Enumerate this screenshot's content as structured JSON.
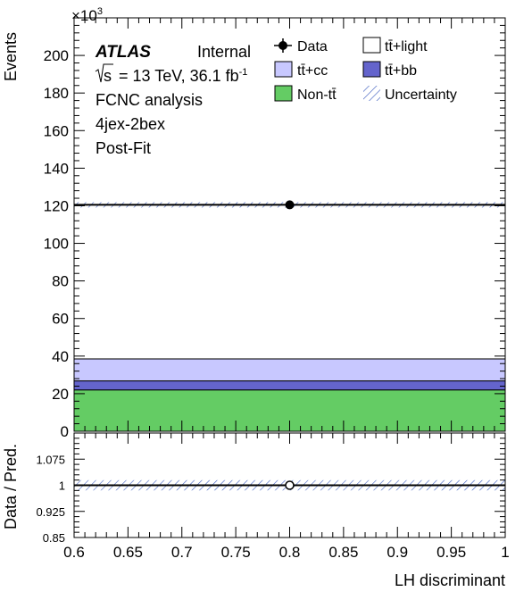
{
  "plot_info": {
    "atlas": "ATLAS",
    "status": "Internal",
    "sqrts_prefix": "s",
    "energy_lumi": "= 13 TeV, 36.1 fb",
    "lumi_exp": "-1",
    "analysis": "FCNC analysis",
    "region": "4jex-2bex",
    "fit": "Post-Fit"
  },
  "colors": {
    "ttlight": "#ffffff",
    "ttcc": "#c8c8ff",
    "ttbb": "#6464cc",
    "nontt": "#64cc64",
    "uncertainty": "#3f5fbf"
  },
  "chart_data": [
    {
      "type": "bar",
      "panel": "main",
      "stacked": true,
      "xlim": [
        0.6,
        1.0
      ],
      "ylim": [
        0,
        220000
      ],
      "y_multiplier": "×10",
      "y_multiplier_exp": "3",
      "ylabel": "Events",
      "yticks": [
        0,
        20,
        40,
        60,
        80,
        100,
        120,
        140,
        160,
        180,
        200
      ],
      "bin": [
        0.6,
        1.0
      ],
      "series": [
        {
          "name": "Non-tt̄",
          "value": 22000
        },
        {
          "name": "tt̄+bb",
          "value": 4800
        },
        {
          "name": "tt̄+cc",
          "value": 11700
        },
        {
          "name": "tt̄+light",
          "value": 82000
        }
      ],
      "data_point": {
        "name": "Data",
        "x": 0.8,
        "y": 120500
      },
      "legend": {
        "placement": "top-right",
        "entries": [
          "Data",
          "tt̄+light",
          "tt̄+cc",
          "tt̄+bb",
          "Non-tt̄",
          "Uncertainty"
        ]
      }
    },
    {
      "type": "scatter",
      "panel": "ratio",
      "xlim": [
        0.6,
        1.0
      ],
      "ylim": [
        0.85,
        1.15
      ],
      "ylabel": "Data / Pred.",
      "xlabel": "LH discriminant",
      "yticks": [
        "0.85",
        "0.925",
        "1",
        "1.075"
      ],
      "xticks": [
        "0.6",
        "0.65",
        "0.7",
        "0.75",
        "0.8",
        "0.85",
        "0.9",
        "0.95",
        "1"
      ],
      "x": [
        0.8
      ],
      "y": [
        1.0
      ],
      "uncertainty_band": [
        0.993,
        1.007
      ]
    }
  ]
}
